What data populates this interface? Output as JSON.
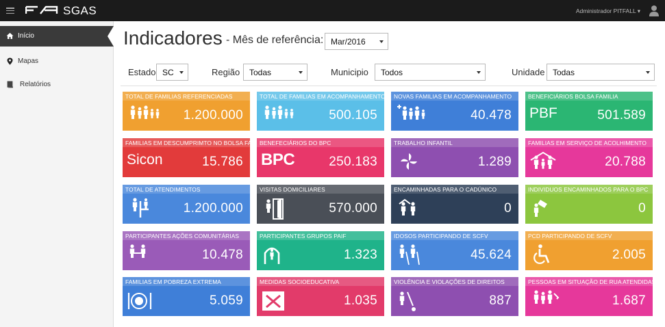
{
  "app": {
    "title": "SGAS",
    "user": "Administrador PITFALL ▾"
  },
  "sidebar": {
    "items": [
      {
        "label": "Início",
        "icon": "home-icon"
      },
      {
        "label": "Mapas",
        "icon": "map-marker-icon"
      },
      {
        "label": "Relatórios",
        "icon": "book-icon"
      }
    ]
  },
  "header": {
    "title": "Indicadores",
    "ref_label": "- Mês de referência:",
    "ref_value": "Mar/2016"
  },
  "filters": [
    {
      "label": "Estado",
      "value": "SC"
    },
    {
      "label": "Região",
      "value": "Todas"
    },
    {
      "label": "Municipio",
      "value": "Todos"
    },
    {
      "label": "Unidade",
      "value": "Todas"
    }
  ],
  "tiles": [
    {
      "title": "TOTAL DE FAMILIAS REFERENCIADAS",
      "value": "1.200.000",
      "color": "#f0a030",
      "icon": "family-icon"
    },
    {
      "title": "TOTAL DE FAMILIAS EM ACOMPANHAMENTO",
      "value": "500.105",
      "color": "#5bbfe8",
      "icon": "family-icon"
    },
    {
      "title": "NOVAS FAMILIAS EM ACOMPANHAMENTO",
      "value": "40.478",
      "color": "#3f7fd8",
      "icon": "family-plus-icon"
    },
    {
      "title": "BENEFICIÁRIOS BOLSA FAMILIA",
      "value": "501.589",
      "color": "#2bb673",
      "text": "PBF"
    },
    {
      "title": "FAMILIAS EM DESCUMPRIMTO NO BOLSA FAMILIA",
      "value": "15.786",
      "color": "#e23b3b",
      "text": "Sicon"
    },
    {
      "title": "BENEFECIÁRIOS DO BPC",
      "value": "250.183",
      "color": "#e8376a",
      "text": "BPC"
    },
    {
      "title": "TRABALHO INFANTIL",
      "value": "1.289",
      "color": "#8e4fb0",
      "icon": "pinwheel-icon"
    },
    {
      "title": "FAMILIAS EM SERVIÇO DE ACOLHIMENTO",
      "value": "20.788",
      "color": "#e6389b",
      "icon": "shelter-family-icon"
    },
    {
      "title": "TOTAL DE ATENDIMENTOS",
      "value": "1.200.000",
      "color": "#4a88dc",
      "icon": "reception-icon"
    },
    {
      "title": "VISITAS DOMICILIARES",
      "value": "570.000",
      "color": "#4a4f57",
      "icon": "door-visit-icon"
    },
    {
      "title": "ENCAMINHADAS PARA O CADÚNICO",
      "value": "0",
      "color": "#2e4058",
      "icon": "referral-icon"
    },
    {
      "title": "INDIVIDUOS ENCAMINHADOS PARA O BPC",
      "value": "0",
      "color": "#8cc63e",
      "icon": "sign-person-icon"
    },
    {
      "title": "PARTICIPANTES AÇÕES COMUNITÁRIAS",
      "value": "10.478",
      "color": "#9a5bb8",
      "icon": "community-icon"
    },
    {
      "title": "PARTICIPANTES GRUPOS PAIF",
      "value": "1.323",
      "color": "#1fb38a",
      "icon": "group-arch-icon"
    },
    {
      "title": "IDOSOS PARTICIPANDO DE SCFV",
      "value": "45.624",
      "color": "#4a88dc",
      "icon": "elderly-icon"
    },
    {
      "title": "PCD PARTICIPANDO DE SCFV",
      "value": "2.005",
      "color": "#f0a030",
      "icon": "wheelchair-icon"
    },
    {
      "title": "FAMILIAS EM POBREZA EXTREMA",
      "value": "5.059",
      "color": "#3f7fd8",
      "icon": "plate-icon"
    },
    {
      "title": "MEDIDAS SOCIOEDUCATIVA",
      "value": "1.035",
      "color": "#e23b6a",
      "icon": "handcuff-icon"
    },
    {
      "title": "VIOLÊNCIA E VIOLAÇÕES DE DIREITOS",
      "value": "887",
      "color": "#8e4fb0",
      "icon": "violence-icon"
    },
    {
      "title": "PESSOAS EM SITUAÇÃO DE RUA ATENDIDAS",
      "value": "1.687",
      "color": "#e6389b",
      "icon": "street-people-icon"
    }
  ]
}
